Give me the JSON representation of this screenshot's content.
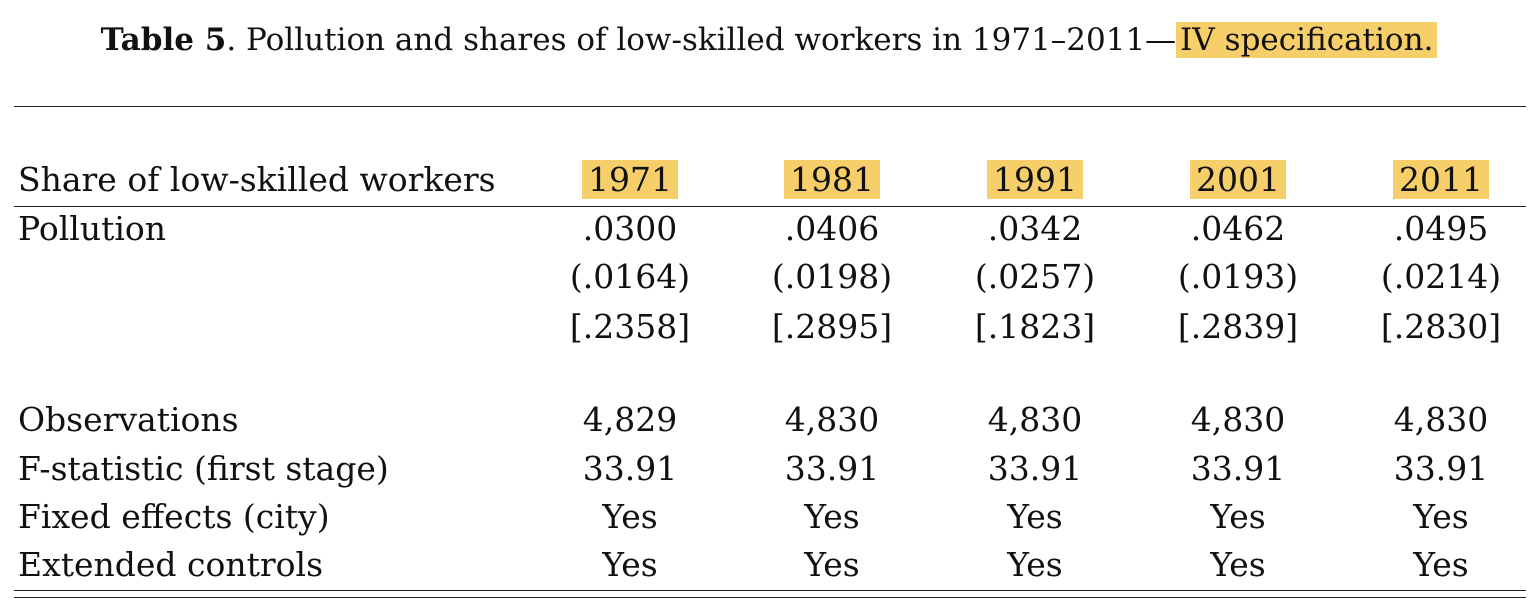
{
  "caption": {
    "label": "Table 5",
    "text": ". Pollution and shares of low-skilled workers in 1971–2011—",
    "highlight": "IV specification."
  },
  "table": {
    "header_label": "Share of low-skilled workers",
    "years": [
      "1971",
      "1981",
      "1991",
      "2001",
      "2011"
    ],
    "rows": {
      "pollution": {
        "label": "Pollution",
        "coef": [
          ".0300",
          ".0406",
          ".0342",
          ".0462",
          ".0495"
        ],
        "se": [
          "(.0164)",
          "(.0198)",
          "(.0257)",
          "(.0193)",
          "(.0214)"
        ],
        "bracket": [
          "[.2358]",
          "[.2895]",
          "[.1823]",
          "[.2839]",
          "[.2830]"
        ]
      },
      "observations": {
        "label": "Observations",
        "values": [
          "4,829",
          "4,830",
          "4,830",
          "4,830",
          "4,830"
        ]
      },
      "fstat": {
        "label": "F-statistic (first stage)",
        "values": [
          "33.91",
          "33.91",
          "33.91",
          "33.91",
          "33.91"
        ]
      },
      "fixed_effects": {
        "label": "Fixed effects (city)",
        "values": [
          "Yes",
          "Yes",
          "Yes",
          "Yes",
          "Yes"
        ]
      },
      "extended_controls": {
        "label": "Extended controls",
        "values": [
          "Yes",
          "Yes",
          "Yes",
          "Yes",
          "Yes"
        ]
      }
    }
  }
}
